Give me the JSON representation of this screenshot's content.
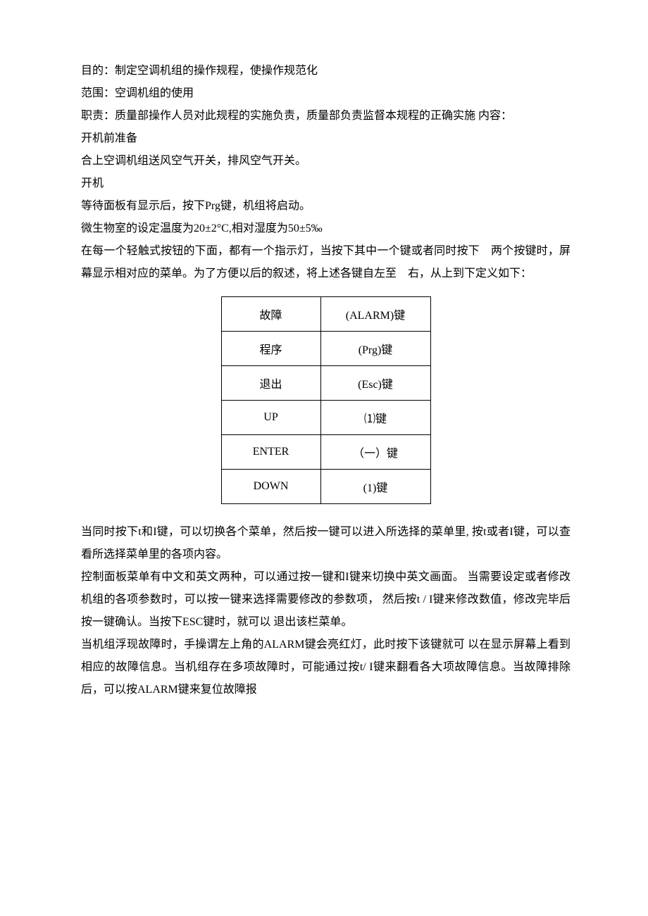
{
  "paragraphs_top": [
    "目的：制定空调机组的操作规程，使操作规范化",
    "范围：空调机组的使用",
    "职责：质量部操作人员对此规程的实施负责，质量部负责监督本规程的正确实施 内容：",
    "开机前准备",
    "合上空调机组送风空气开关，排风空气开关。",
    "开机",
    "等待面板有显示后，按下Prg键，机组将启动。",
    "微生物室的设定温度为20±2°C,相对湿度为50±5‰",
    "在每一个轻触式按钮的下面，都有一个指示灯，当按下其中一个键或者同时按下　两个按键时，屏幕显示相对应的菜单。为了方便以后的叙述，将上述各键自左至　右，从上到下定义如下："
  ],
  "table_rows": [
    [
      "故障",
      "(ALARM)键"
    ],
    [
      "程序",
      "(Prg)键"
    ],
    [
      "退出",
      "(Esc)键"
    ],
    [
      "UP",
      "⑴键"
    ],
    [
      "ENTER",
      "（一）键"
    ],
    [
      "DOWN",
      "(1)键"
    ]
  ],
  "paragraphs_bottom": [
    "当同时按下t和I键，可以切换各个菜单，然后按一键可以进入所选择的菜单里, 按t或者I键，可以查看所选择菜单里的各项内容。",
    "控制面板菜单有中文和英文两种，可以通过按一键和I键来切换中英文画面。 当需要设定或者修改机组的各项参数时，可以按一键来选择需要修改的参数项， 然后按t / I键来修改数值，修改完毕后按一键确认。当按下ESC键时，就可以 退出该栏菜单。",
    "当机组浮现故障时，手操谓左上角的ALARM键会亮红灯，此时按下该键就可 以在显示屏幕上看到相应的故障信息。当机组存在多项故障时，可能通过按t/ I键来翻看各大项故障信息。当故障排除后，可以按ALARM键来复位故障报"
  ]
}
